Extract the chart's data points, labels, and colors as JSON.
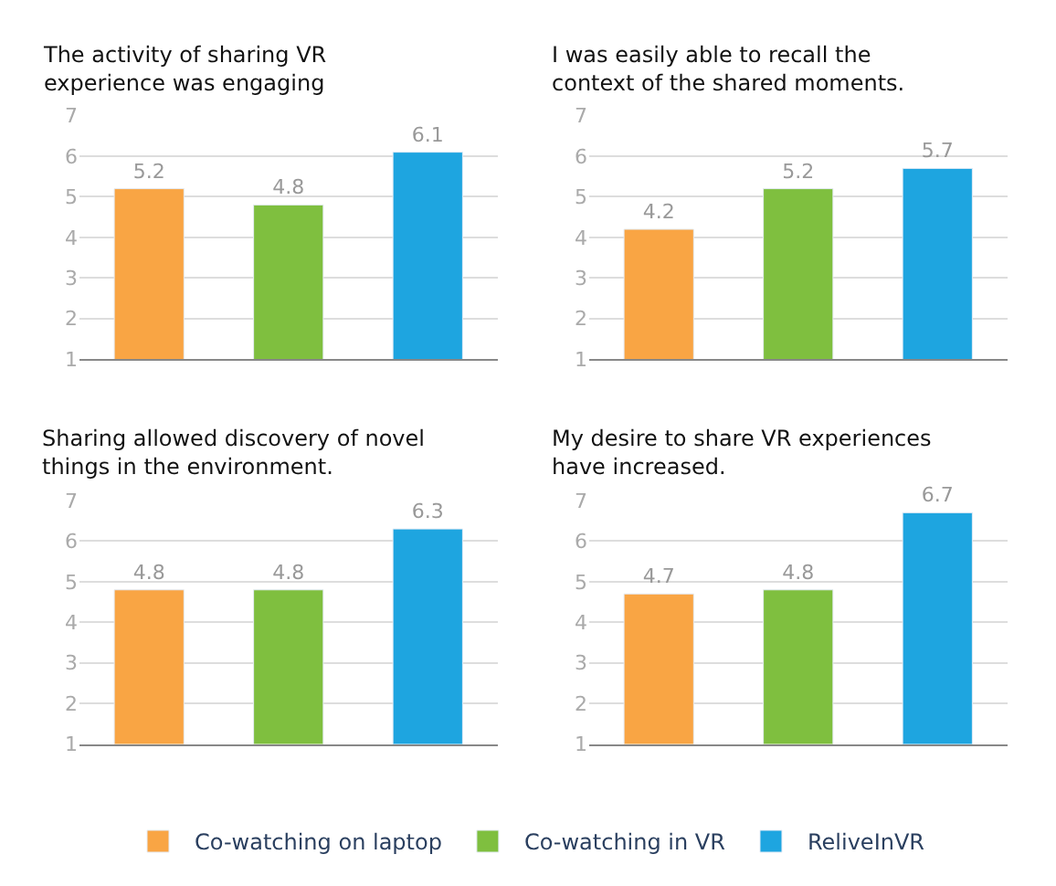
{
  "chart_data": [
    {
      "type": "bar",
      "title": "The activity of sharing VR experience was engaging",
      "categories": [
        null,
        null,
        null
      ],
      "series": [
        {
          "name": "Co-watching on laptop",
          "color": "#f9a544",
          "values": [
            5.2,
            null,
            null
          ]
        },
        {
          "name": "Co-watching in VR",
          "color": "#7fbf3f",
          "values": [
            null,
            4.8,
            null
          ]
        },
        {
          "name": "ReliveInVR",
          "color": "#1ea5e0",
          "values": [
            null,
            null,
            6.1
          ]
        }
      ],
      "ylim": [
        1,
        7
      ],
      "yticks": [
        1,
        2,
        3,
        4,
        5,
        6,
        7
      ],
      "grid": "y",
      "data_labels": true,
      "legend": "bottom"
    },
    {
      "type": "bar",
      "title": "I was easily able to recall the context of the shared moments.",
      "categories": [
        null,
        null,
        null
      ],
      "series": [
        {
          "color": "#f9a544",
          "values": [
            4.2,
            null,
            null
          ]
        },
        {
          "color": "#7fbf3f",
          "values": [
            null,
            5.2,
            null
          ]
        },
        {
          "color": "#1ea5e0",
          "values": [
            null,
            null,
            5.7
          ]
        }
      ],
      "ylim": [
        1,
        7
      ],
      "yticks": [
        1,
        2,
        3,
        4,
        5,
        6,
        7
      ],
      "grid": "y",
      "data_labels": true
    },
    {
      "type": "bar",
      "title": "Sharing allowed discovery of novel things in the environment.",
      "categories": [
        null,
        null,
        null
      ],
      "series": [
        {
          "color": "#f9a544",
          "values": [
            4.8,
            null,
            null
          ]
        },
        {
          "color": "#7fbf3f",
          "values": [
            null,
            4.8,
            null
          ]
        },
        {
          "color": "#1ea5e0",
          "values": [
            null,
            null,
            6.3
          ]
        }
      ],
      "ylim": [
        1,
        7
      ],
      "yticks": [
        1,
        2,
        3,
        4,
        5,
        6,
        7
      ],
      "grid": "y",
      "data_labels": true
    },
    {
      "type": "bar",
      "title": "My desire to share VR experiences have increased.",
      "categories": [
        null,
        null,
        null
      ],
      "series": [
        {
          "color": "#f9a544",
          "values": [
            4.7,
            null,
            null
          ]
        },
        {
          "color": "#7fbf3f",
          "values": [
            null,
            4.8,
            null
          ]
        },
        {
          "color": "#1ea5e0",
          "values": [
            null,
            null,
            6.7
          ]
        }
      ],
      "ylim": [
        1,
        7
      ],
      "yticks": [
        1,
        2,
        3,
        4,
        5,
        6,
        7
      ],
      "grid": "y",
      "data_labels": true
    }
  ]
}
